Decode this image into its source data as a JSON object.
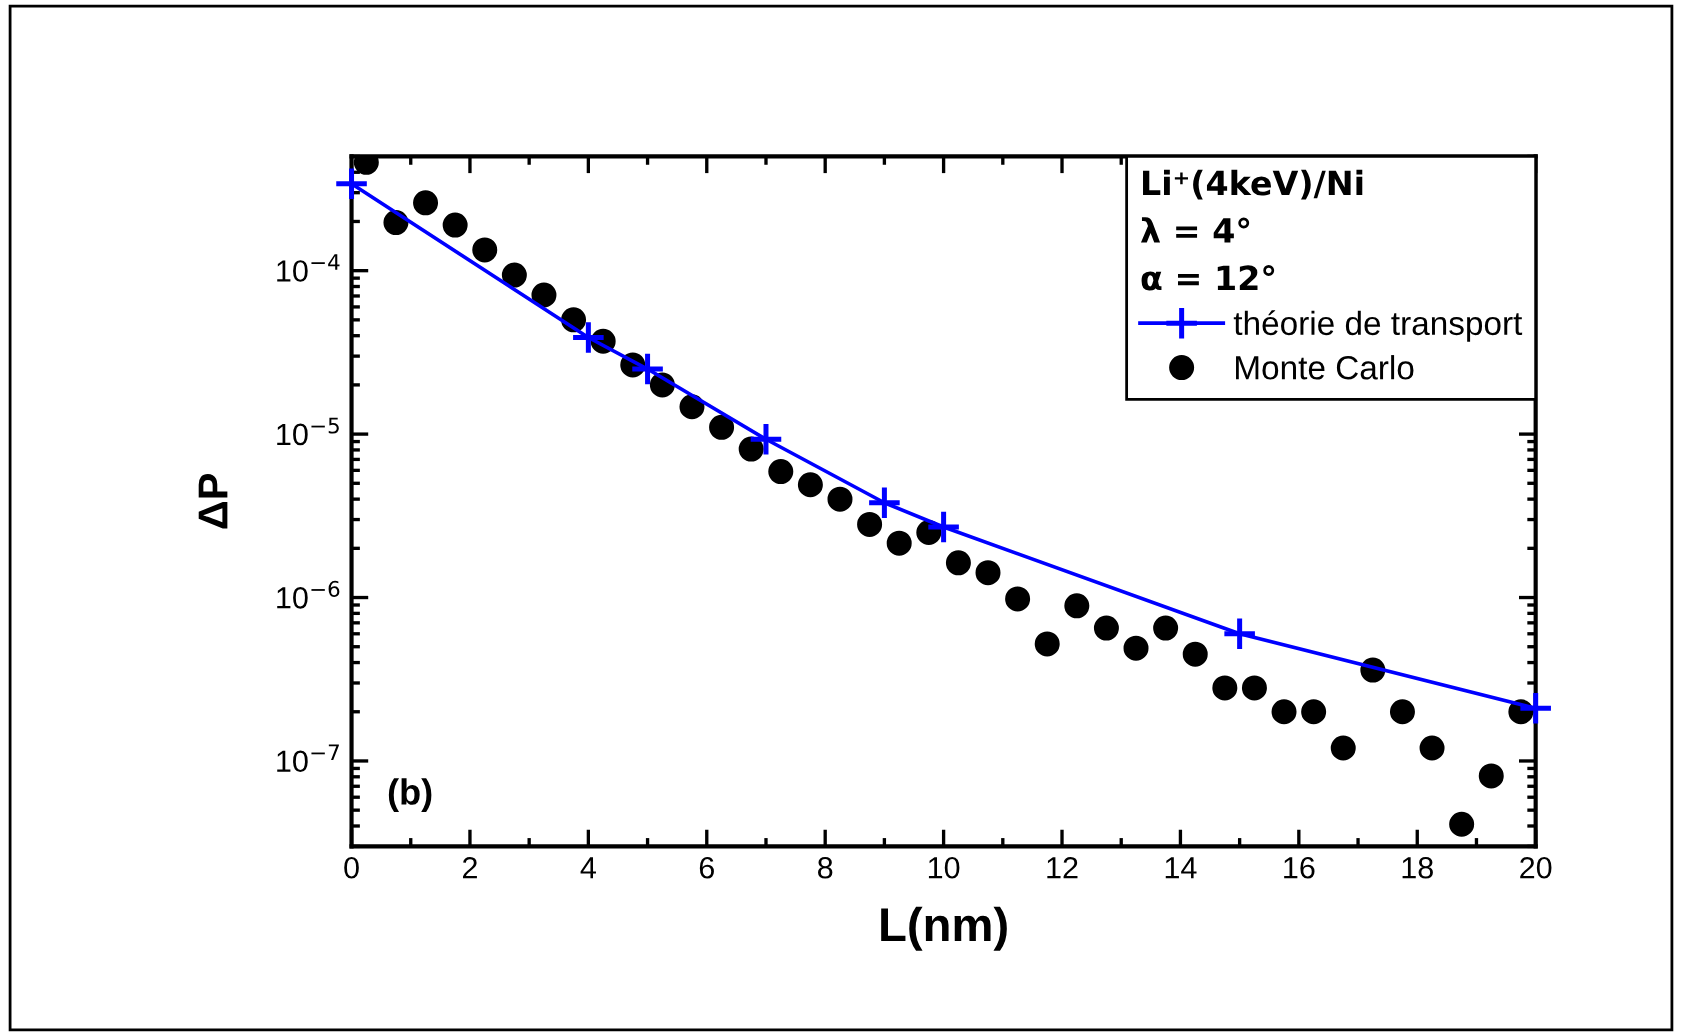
{
  "chart_data": {
    "type": "line",
    "xlabel": "L(nm)",
    "ylabel": "ΔP",
    "legend_title": "Li⁺(4keV)/Ni\nλ = 4°\nα = 12°",
    "annotations": [
      "(b)"
    ],
    "log": "y",
    "xlim": [
      0,
      20
    ],
    "xticks": [
      0,
      2,
      4,
      6,
      8,
      10,
      12,
      14,
      16,
      18,
      20
    ],
    "ylim": [
      3e-08,
      0.0005
    ],
    "yticks": [
      {
        "value": 1e-07,
        "label": "10$^{−7}$"
      },
      {
        "value": 1e-06,
        "label": "10$^{−6}$"
      },
      {
        "value": 1e-05,
        "label": "10$^{−5}$"
      },
      {
        "value": 0.0001,
        "label": "10$^{−4}$"
      }
    ],
    "grid": false,
    "legend": "top right",
    "series": [
      {
        "name": "théorie de transport",
        "color": "#0000ff",
        "marker": "cross",
        "line_style": "solid",
        "x": [
          0,
          4,
          5,
          7,
          9,
          10,
          15,
          20
        ],
        "values": [
          0.00034,
          3.9e-05,
          2.5e-05,
          9.3e-06,
          3.8e-06,
          2.7e-06,
          6e-07,
          2.1e-07
        ]
      },
      {
        "name": "Monte Carlo",
        "type": "scatter",
        "color": "#000000",
        "marker": "circle",
        "x": [
          0.25,
          0.75,
          1.25,
          1.75,
          2.25,
          2.75,
          3.25,
          3.75,
          4.25,
          4.75,
          5.25,
          5.75,
          6.25,
          6.75,
          7.25,
          7.75,
          8.25,
          8.75,
          9.25,
          9.75,
          10.25,
          10.75,
          11.25,
          11.75,
          12.25,
          12.75,
          13.25,
          13.75,
          14.25,
          14.75,
          15.25,
          15.75,
          16.25,
          16.75,
          17.25,
          17.75,
          18.25,
          18.75,
          19.25,
          19.75
        ],
        "values": [
          0.00046,
          0.000197,
          0.00026,
          0.00019,
          0.000134,
          9.4e-05,
          7.1e-05,
          5e-05,
          3.7e-05,
          2.65e-05,
          2e-05,
          1.47e-05,
          1.1e-05,
          8.1e-06,
          5.9e-06,
          4.9e-06,
          4e-06,
          2.8e-06,
          2.15e-06,
          2.5e-06,
          1.63e-06,
          1.42e-06,
          9.8e-07,
          5.2e-07,
          8.9e-07,
          6.5e-07,
          4.9e-07,
          6.5e-07,
          4.5e-07,
          2.8e-07,
          2.8e-07,
          2e-07,
          2e-07,
          1.2e-07,
          3.6e-07,
          2e-07,
          1.2e-07,
          4.1e-08,
          8.1e-08,
          2e-07
        ]
      }
    ]
  }
}
